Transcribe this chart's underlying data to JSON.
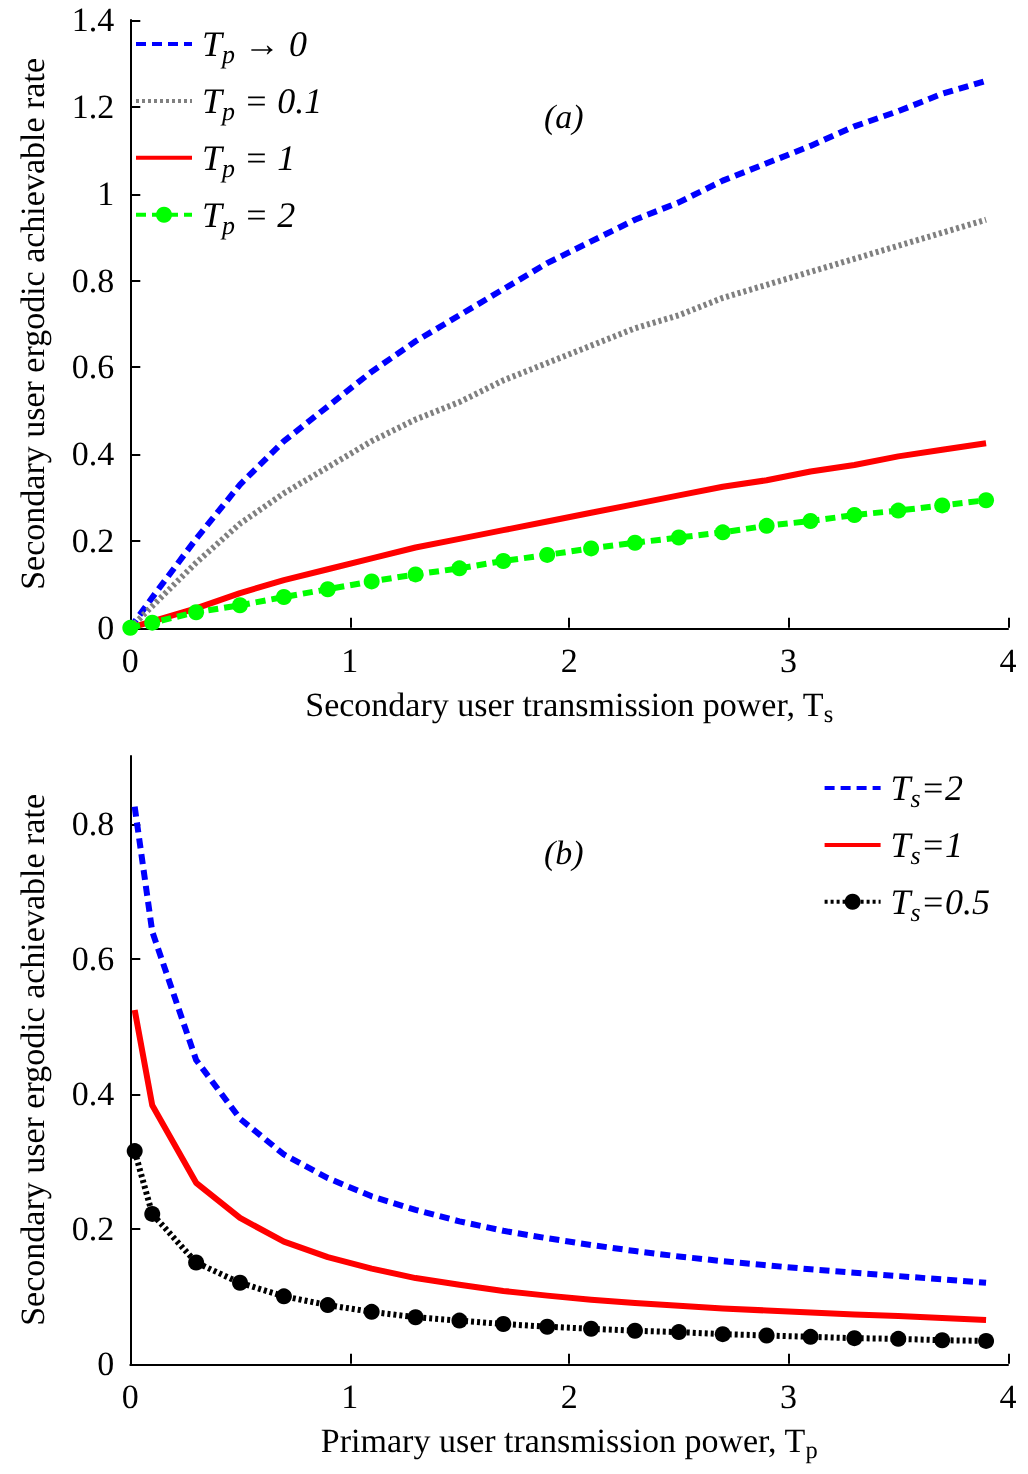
{
  "chart_data": [
    {
      "type": "line",
      "xlabel": "Secondary user transmission power, T$_{s}$",
      "ylabel": "Secondary user ergodic achievable rate",
      "annotations": [
        "(a)"
      ],
      "x": [
        0,
        0.1,
        0.3,
        0.5,
        0.7,
        0.9,
        1.1,
        1.3,
        1.5,
        1.7,
        1.9,
        2.1,
        2.3,
        2.5,
        2.7,
        2.9,
        3.1,
        3.3,
        3.5,
        3.7,
        3.9
      ],
      "series": [
        {
          "name": "T$_{p}$ → 0",
          "color": "#0000ff",
          "line_style": "dashed",
          "marker": "none",
          "values": [
            0,
            0.07,
            0.205,
            0.33,
            0.43,
            0.51,
            0.59,
            0.66,
            0.72,
            0.78,
            0.84,
            0.89,
            0.94,
            0.98,
            1.03,
            1.07,
            1.11,
            1.155,
            1.19,
            1.23,
            1.26
          ]
        },
        {
          "name": "T$_{p}$ = 0.1",
          "color": "#808080",
          "line_style": "dotted",
          "marker": "none",
          "values": [
            0,
            0.05,
            0.15,
            0.24,
            0.31,
            0.37,
            0.43,
            0.48,
            0.52,
            0.57,
            0.61,
            0.65,
            0.69,
            0.72,
            0.76,
            0.79,
            0.82,
            0.85,
            0.88,
            0.91,
            0.94
          ]
        },
        {
          "name": "T$_{p}$ = 1",
          "color": "#ff0000",
          "line_style": "solid",
          "marker": "none",
          "values": [
            0,
            0.015,
            0.045,
            0.08,
            0.11,
            0.135,
            0.16,
            0.185,
            0.205,
            0.225,
            0.245,
            0.265,
            0.285,
            0.305,
            0.325,
            0.34,
            0.36,
            0.375,
            0.395,
            0.41,
            0.425
          ]
        },
        {
          "name": "T$_{p}$ = 2",
          "color": "#00ff00",
          "line_style": "dashed",
          "marker": "circle",
          "values": [
            0,
            0.012,
            0.036,
            0.052,
            0.071,
            0.089,
            0.107,
            0.123,
            0.137,
            0.154,
            0.168,
            0.183,
            0.196,
            0.208,
            0.22,
            0.235,
            0.246,
            0.26,
            0.27,
            0.282,
            0.294
          ]
        }
      ],
      "xlim": [
        0,
        4
      ],
      "xticks": [
        0,
        1,
        2,
        3,
        4
      ],
      "ylim": [
        0,
        1.4
      ],
      "yticks": [
        0,
        0.2,
        0.4,
        0.6,
        0.8,
        1,
        1.2,
        1.4
      ],
      "grid": false,
      "legend": "top left"
    },
    {
      "type": "line",
      "xlabel": "Primary user transmission power, T$_{p}$",
      "ylabel": "Secondary user ergodic achievable rate",
      "annotations": [
        "(b)"
      ],
      "x": [
        0.02,
        0.1,
        0.3,
        0.5,
        0.7,
        0.9,
        1.1,
        1.3,
        1.5,
        1.7,
        1.9,
        2.1,
        2.3,
        2.5,
        2.7,
        2.9,
        3.1,
        3.3,
        3.5,
        3.7,
        3.9
      ],
      "series": [
        {
          "name": "T$_{s}$=2",
          "color": "#0000ff",
          "line_style": "dashed",
          "marker": "none",
          "values": [
            0.825,
            0.64,
            0.45,
            0.363,
            0.31,
            0.275,
            0.248,
            0.228,
            0.211,
            0.197,
            0.186,
            0.176,
            0.167,
            0.159,
            0.152,
            0.146,
            0.14,
            0.135,
            0.13,
            0.125,
            0.12
          ]
        },
        {
          "name": "T$_{s}$=1",
          "color": "#ff0000",
          "line_style": "solid",
          "marker": "none",
          "values": [
            0.524,
            0.383,
            0.268,
            0.216,
            0.181,
            0.158,
            0.141,
            0.127,
            0.117,
            0.108,
            0.101,
            0.095,
            0.09,
            0.086,
            0.082,
            0.079,
            0.076,
            0.073,
            0.071,
            0.068,
            0.065
          ]
        },
        {
          "name": "T$_{s}$=0.5",
          "color": "#000000",
          "line_style": "dotted",
          "marker": "circle",
          "values": [
            0.315,
            0.222,
            0.15,
            0.12,
            0.1,
            0.087,
            0.077,
            0.069,
            0.064,
            0.059,
            0.055,
            0.052,
            0.049,
            0.047,
            0.044,
            0.042,
            0.04,
            0.038,
            0.037,
            0.035,
            0.034
          ]
        }
      ],
      "xlim": [
        0,
        4
      ],
      "xticks": [
        0,
        1,
        2,
        3,
        4
      ],
      "ylim": [
        0,
        0.9
      ],
      "yticks": [
        0,
        0.2,
        0.4,
        0.6,
        0.8
      ],
      "grid": false,
      "legend": "top right"
    }
  ]
}
